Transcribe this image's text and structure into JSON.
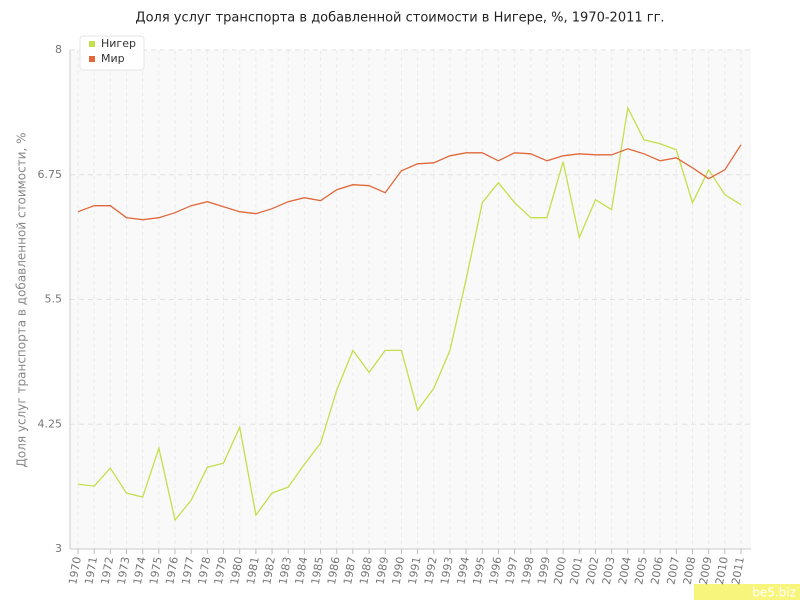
{
  "chart_data": {
    "type": "line",
    "title": "Доля услуг транспорта в добавленной стоимости в Нигере, %, 1970-2011 гг.",
    "y_label": "Доля услуг транспорта в добавленной стоимости, %",
    "watermark": "be5.biz",
    "categories": [
      "1970",
      "1971",
      "1972",
      "1973",
      "1974",
      "1975",
      "1976",
      "1977",
      "1978",
      "1979",
      "1980",
      "1981",
      "1982",
      "1983",
      "1984",
      "1985",
      "1986",
      "1987",
      "1988",
      "1989",
      "1990",
      "1991",
      "1992",
      "1993",
      "1994",
      "1995",
      "1996",
      "1997",
      "1998",
      "1999",
      "2000",
      "2001",
      "2002",
      "2003",
      "2004",
      "2005",
      "2006",
      "2007",
      "2008",
      "2009",
      "2010",
      "2011"
    ],
    "series": [
      {
        "name": "Нигер",
        "color": "#c3e04c",
        "values": [
          3.65,
          3.63,
          3.81,
          3.56,
          3.52,
          4.01,
          3.29,
          3.49,
          3.82,
          3.86,
          4.22,
          3.34,
          3.56,
          3.62,
          3.85,
          4.06,
          4.59,
          4.99,
          4.77,
          4.99,
          4.99,
          4.39,
          4.61,
          4.99,
          5.7,
          6.47,
          6.67,
          6.47,
          6.32,
          6.32,
          6.88,
          6.12,
          6.5,
          6.4,
          7.42,
          7.1,
          7.06,
          7.0,
          6.47,
          6.8,
          6.55,
          6.45
        ]
      },
      {
        "name": "Мир",
        "color": "#e0683a",
        "values": [
          6.38,
          6.44,
          6.44,
          6.32,
          6.3,
          6.32,
          6.37,
          6.44,
          6.48,
          6.43,
          6.38,
          6.36,
          6.41,
          6.48,
          6.52,
          6.49,
          6.6,
          6.65,
          6.64,
          6.57,
          6.79,
          6.86,
          6.87,
          6.94,
          6.97,
          6.97,
          6.89,
          6.97,
          6.96,
          6.89,
          6.94,
          6.96,
          6.95,
          6.95,
          7.01,
          6.96,
          6.89,
          6.92,
          6.82,
          6.71,
          6.8,
          7.05
        ]
      }
    ],
    "ylim": [
      3,
      8
    ],
    "yticks": [
      3,
      4.25,
      5.5,
      6.75,
      8
    ],
    "grid": true,
    "legend": "top-left"
  }
}
